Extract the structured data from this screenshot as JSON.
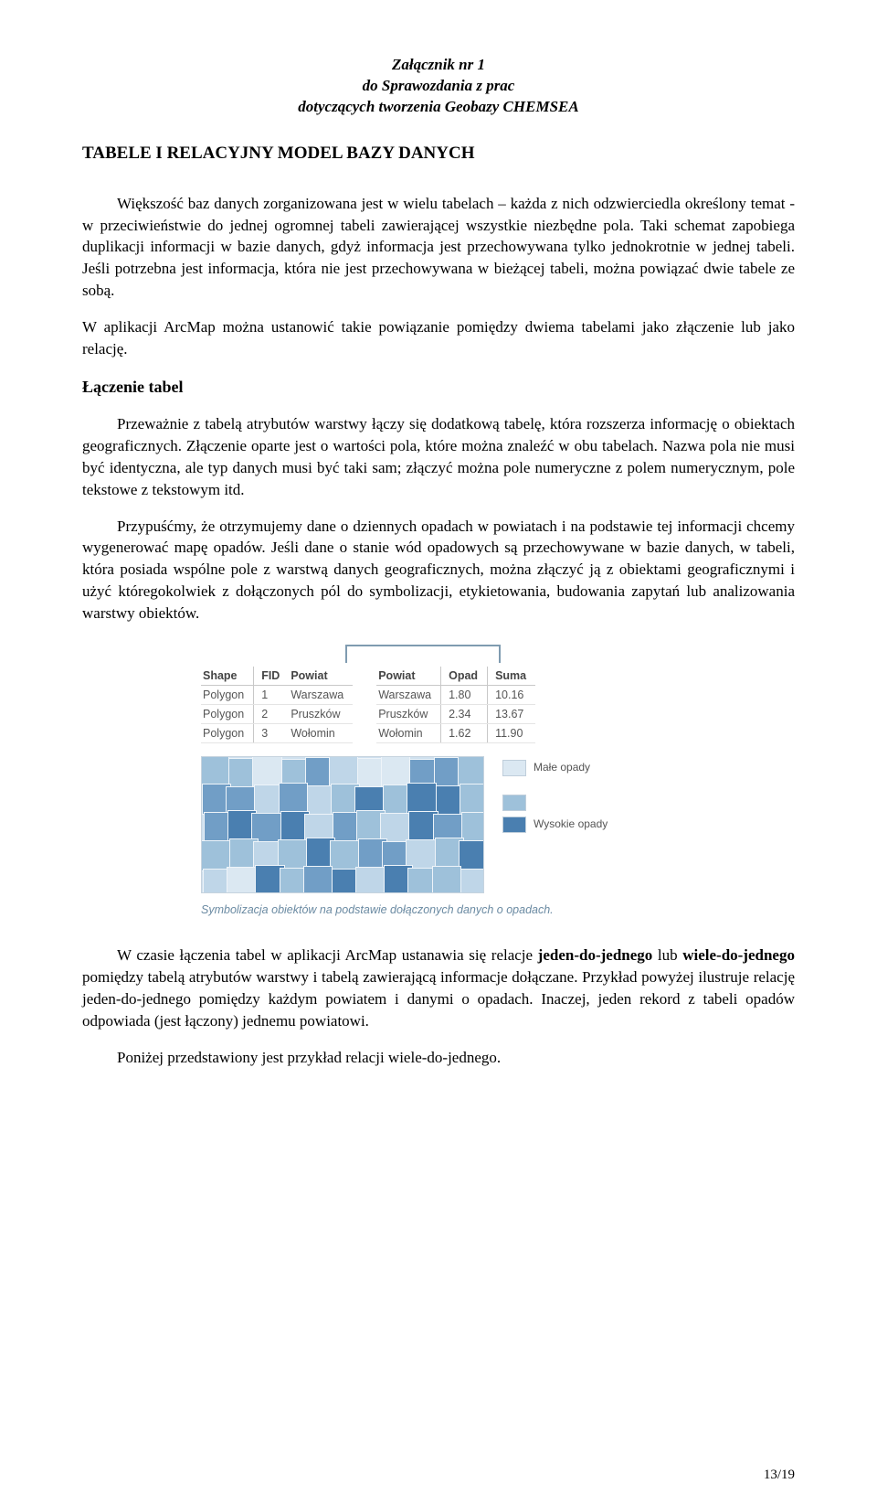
{
  "header": {
    "line1": "Załącznik nr 1",
    "line2": "do Sprawozdania z prac",
    "line3": "dotyczących tworzenia Geobazy CHEMSEA"
  },
  "title": "TABELE I RELACYJNY MODEL BAZY DANYCH",
  "para1": "Większość baz danych zorganizowana jest w wielu tabelach – każda z nich odzwierciedla określony temat - w przeciwieństwie do jednej ogromnej tabeli zawierającej wszystkie niezbędne pola. Taki schemat zapobiega duplikacji informacji w bazie danych, gdyż informacja jest przechowywana tylko jednokrotnie w jednej tabeli. Jeśli potrzebna jest informacja, która nie jest przechowywana w bieżącej tabeli, można powiązać dwie tabele ze sobą.",
  "para2_pre": "W aplikacji ArcMap można ustanowić takie powiązanie pomiędzy dwiema tabelami jako ",
  "para2_post": ".",
  "para2_em1": "złączenie",
  "para2_mid": " lub jako ",
  "para2_em2": "relację",
  "sectionTitle": "Łączenie tabel",
  "para3": "Przeważnie z tabelą atrybutów warstwy łączy się dodatkową tabelę, która rozszerza informację o obiektach geograficznych. Złączenie oparte jest o wartości pola, które można znaleźć w obu tabelach. Nazwa pola nie musi być identyczna, ale typ danych musi być taki sam; złączyć można pole numeryczne z polem numerycznym, pole tekstowe z tekstowym itd.",
  "para4": "Przypuśćmy, że otrzymujemy dane o dziennych opadach w powiatach i na podstawie tej informacji chcemy wygenerować mapę opadów. Jeśli dane o stanie wód opadowych są przechowywane w bazie danych, w tabeli, która posiada wspólne pole z warstwą danych geograficznych, można złączyć ją z obiektami geograficznymi i użyć któregokolwiek z dołączonych pól do symbolizacji, etykietowania, budowania zapytań lub analizowania warstwy obiektów.",
  "figure": {
    "left_table": {
      "columns": [
        "Shape",
        "FID",
        "Powiat"
      ],
      "rows": [
        [
          "Polygon",
          "1",
          "Warszawa"
        ],
        [
          "Polygon",
          "2",
          "Pruszków"
        ],
        [
          "Polygon",
          "3",
          "Wołomin"
        ]
      ]
    },
    "right_table": {
      "columns": [
        "Powiat",
        "Opad",
        "Suma"
      ],
      "rows": [
        [
          "Warszawa",
          "1.80",
          "10.16"
        ],
        [
          "Pruszków",
          "2.34",
          "13.67"
        ],
        [
          "Wołomin",
          "1.62",
          "11.90"
        ]
      ]
    },
    "bracket_color": "#7f9bb0",
    "legend": {
      "low_label": "Małe opady",
      "high_label": "Wysokie opady",
      "low_color": "#dbe8f2",
      "mid_color": "#9ec1da",
      "high_color": "#4a7fb0"
    },
    "caption": "Symbolizacja obiektów na podstawie dołączonych danych o opadach.",
    "map": {
      "bg": "#cfe0ee",
      "border": "#c6d3de",
      "tile_border": "#eef4f9",
      "palette": [
        "#dbe8f2",
        "#bfd6e8",
        "#9ec1da",
        "#719ec6",
        "#4a7fb0"
      ],
      "cols": 11,
      "rows": 5,
      "shades": [
        [
          2,
          2,
          0,
          2,
          3,
          1,
          0,
          0,
          3,
          3,
          2
        ],
        [
          3,
          3,
          1,
          3,
          1,
          2,
          4,
          2,
          4,
          4,
          2
        ],
        [
          3,
          4,
          3,
          4,
          1,
          3,
          2,
          1,
          4,
          3,
          2
        ],
        [
          2,
          2,
          1,
          2,
          4,
          2,
          3,
          3,
          1,
          2,
          4
        ],
        [
          1,
          0,
          4,
          2,
          3,
          4,
          1,
          4,
          2,
          2,
          1
        ]
      ]
    }
  },
  "para5_pre": "W czasie łączenia tabel w aplikacji ArcMap ustanawia się relacje ",
  "para5_b1": "jeden-do-jednego",
  "para5_mid1": " lub ",
  "para5_b2": "wiele-do-jednego",
  "para5_mid2": " pomiędzy tabelą atrybutów warstwy i tabelą zawierającą informacje dołączane. Przykład powyżej ilustruje relację jeden-do-jednego pomiędzy każdym powiatem i danymi o opadach. Inaczej, jeden rekord z tabeli opadów odpowiada (jest łączony) jednemu powiatowi.",
  "para6": "Poniżej przedstawiony jest przykład relacji wiele-do-jednego.",
  "pageNum": "13/19"
}
